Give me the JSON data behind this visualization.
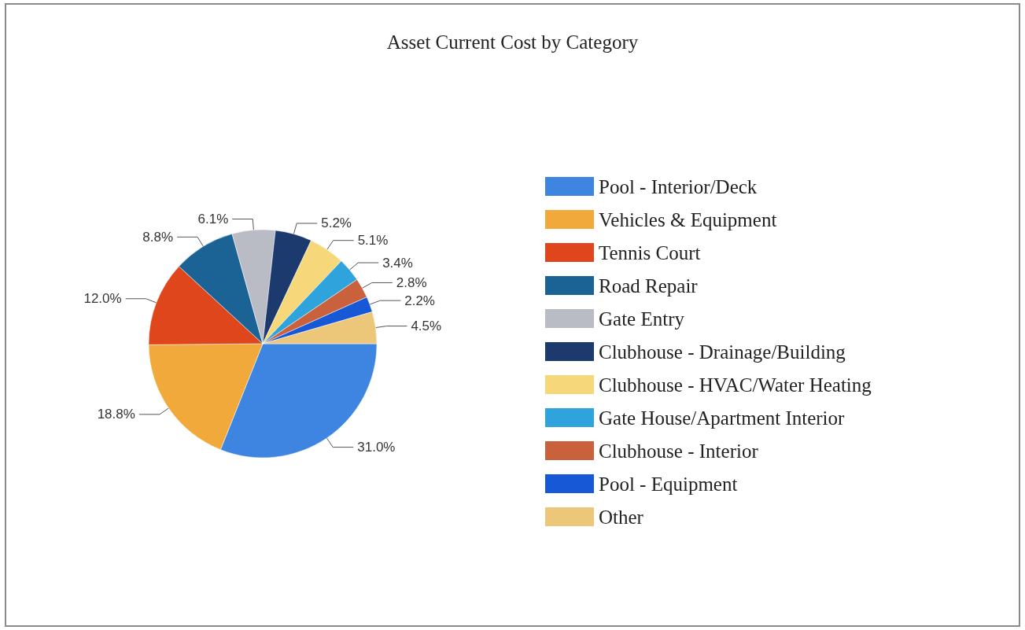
{
  "chart_data": {
    "type": "pie",
    "title": "Asset Current Cost by Category",
    "categories": [
      "Pool - Interior/Deck",
      "Vehicles & Equipment",
      "Tennis Court",
      "Road Repair",
      "Gate Entry",
      "Clubhouse - Drainage/Building",
      "Clubhouse - HVAC/Water Heating",
      "Gate House/Apartment Interior",
      "Clubhouse - Interior",
      "Pool - Equipment",
      "Other"
    ],
    "values": [
      31.0,
      18.8,
      12.0,
      8.8,
      6.1,
      5.2,
      5.1,
      3.4,
      2.8,
      2.2,
      4.5
    ],
    "value_labels": [
      "31.0%",
      "18.8%",
      "12.0%",
      "8.8%",
      "6.1%",
      "5.2%",
      "5.1%",
      "3.4%",
      "2.8%",
      "2.2%",
      "4.5%"
    ],
    "colors": [
      "#3d85e0",
      "#f2a93b",
      "#e0461c",
      "#1a6394",
      "#b9bcc4",
      "#1d3a6e",
      "#f6d77a",
      "#2ea3dc",
      "#c9613c",
      "#1658d6",
      "#ecc679"
    ],
    "legend": "right"
  }
}
